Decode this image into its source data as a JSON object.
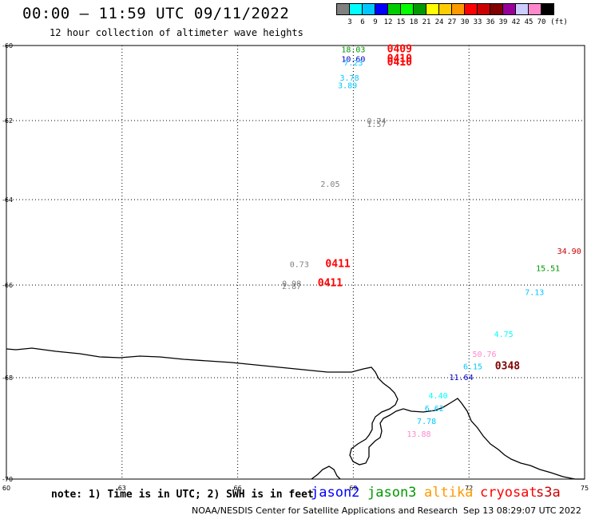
{
  "title": "00:00 — 11:59 UTC 09/11/2022",
  "subtitle": "12 hour collection of altimeter wave heights",
  "legend": {
    "colors": [
      "#808080",
      "#00ffff",
      "#00c8ff",
      "#0000ff",
      "#00cc00",
      "#00ff00",
      "#009900",
      "#ffff00",
      "#ffcc00",
      "#ff9900",
      "#ff0000",
      "#cc0000",
      "#800000",
      "#990099",
      "#ccccff",
      "#ff88cc",
      "#000000"
    ],
    "labels": [
      "3",
      "6",
      "9",
      "12",
      "15",
      "18",
      "21",
      "24",
      "27",
      "30",
      "33",
      "36",
      "39",
      "42",
      "45",
      "70",
      "(ft)"
    ]
  },
  "map": {
    "lon_range": [
      60,
      75
    ],
    "lat_range": [
      -70,
      -60
    ],
    "lon_ticks": [
      60,
      63,
      66,
      69,
      72,
      75
    ],
    "lat_ticks": [
      -60,
      -62,
      -64,
      -66,
      -68,
      -70
    ]
  },
  "observations": [
    {
      "text": "18.03",
      "lon": 69.0,
      "lat": -60.1,
      "color": "#009900",
      "kind": "swh"
    },
    {
      "text": "0409",
      "lon": 70.2,
      "lat": -60.1,
      "color": "#ff0000",
      "kind": "time"
    },
    {
      "text": "10.60",
      "lon": 69.0,
      "lat": -60.35,
      "color": "#0000cc",
      "kind": "swh"
    },
    {
      "text": "7.23",
      "lon": 69.0,
      "lat": -60.45,
      "color": "#00c8ff",
      "kind": "swh"
    },
    {
      "text": "0410",
      "lon": 70.2,
      "lat": -60.35,
      "color": "#ff0000",
      "kind": "time"
    },
    {
      "text": "0410",
      "lon": 70.2,
      "lat": -60.45,
      "color": "#ff0000",
      "kind": "time"
    },
    {
      "text": "3.78",
      "lon": 68.9,
      "lat": -60.85,
      "color": "#00c8ff",
      "kind": "swh"
    },
    {
      "text": "3.89",
      "lon": 68.85,
      "lat": -61.05,
      "color": "#00c8ff",
      "kind": "swh"
    },
    {
      "text": "0.74",
      "lon": 69.6,
      "lat": -62.0,
      "color": "#808080",
      "kind": "swh"
    },
    {
      "text": "1.57",
      "lon": 69.6,
      "lat": -62.08,
      "color": "#808080",
      "kind": "swh"
    },
    {
      "text": "2.05",
      "lon": 68.4,
      "lat": -63.6,
      "color": "#808080",
      "kind": "swh"
    },
    {
      "text": "0.73",
      "lon": 67.6,
      "lat": -65.5,
      "color": "#808080",
      "kind": "swh"
    },
    {
      "text": "0411",
      "lon": 68.6,
      "lat": -65.5,
      "color": "#ff0000",
      "kind": "time"
    },
    {
      "text": "0.98",
      "lon": 67.4,
      "lat": -65.95,
      "color": "#808080",
      "kind": "swh"
    },
    {
      "text": "2.87",
      "lon": 67.4,
      "lat": -66.02,
      "color": "#808080",
      "kind": "swh"
    },
    {
      "text": "0411",
      "lon": 68.4,
      "lat": -65.95,
      "color": "#ff0000",
      "kind": "time"
    },
    {
      "text": "34.90",
      "lon": 74.6,
      "lat": -65.2,
      "color": "#cc0000",
      "kind": "swh"
    },
    {
      "text": "15.51",
      "lon": 74.05,
      "lat": -65.6,
      "color": "#009900",
      "kind": "swh"
    },
    {
      "text": "7.13",
      "lon": 73.7,
      "lat": -66.15,
      "color": "#00c8ff",
      "kind": "swh"
    },
    {
      "text": "4.75",
      "lon": 72.9,
      "lat": -67.05,
      "color": "#00ffff",
      "kind": "swh"
    },
    {
      "text": "50.76",
      "lon": 72.4,
      "lat": -67.48,
      "color": "#ff88cc",
      "kind": "swh"
    },
    {
      "text": "6.15",
      "lon": 72.1,
      "lat": -67.75,
      "color": "#00c8ff",
      "kind": "swh"
    },
    {
      "text": "0348",
      "lon": 73.0,
      "lat": -67.75,
      "color": "#800000",
      "kind": "time"
    },
    {
      "text": "11.64",
      "lon": 71.8,
      "lat": -67.98,
      "color": "#0000cc",
      "kind": "swh"
    },
    {
      "text": "4.40",
      "lon": 71.2,
      "lat": -68.35,
      "color": "#00ffff",
      "kind": "swh"
    },
    {
      "text": "6.62",
      "lon": 71.1,
      "lat": -68.6,
      "color": "#00c8ff",
      "kind": "swh"
    },
    {
      "text": "7.78",
      "lon": 70.9,
      "lat": -68.85,
      "color": "#00c8ff",
      "kind": "swh"
    },
    {
      "text": "13.88",
      "lon": 70.7,
      "lat": -69.1,
      "color": "#ff88cc",
      "kind": "swh"
    }
  ],
  "note": "note: 1) Time is in UTC; 2) SWH is in feet",
  "satellites": [
    {
      "name": "jason2",
      "color": "#0000ff"
    },
    {
      "name": "jason3",
      "color": "#009900"
    },
    {
      "name": "altika",
      "color": "#ff9900"
    },
    {
      "name": "cryosat",
      "color": "#ff0000"
    },
    {
      "name": "s3a",
      "color": "#cc0000"
    }
  ],
  "footer_left": "NOAA/NESDIS Center for Satellite Applications and Research",
  "footer_right": "Sep 13 08:29:07 UTC 2022"
}
